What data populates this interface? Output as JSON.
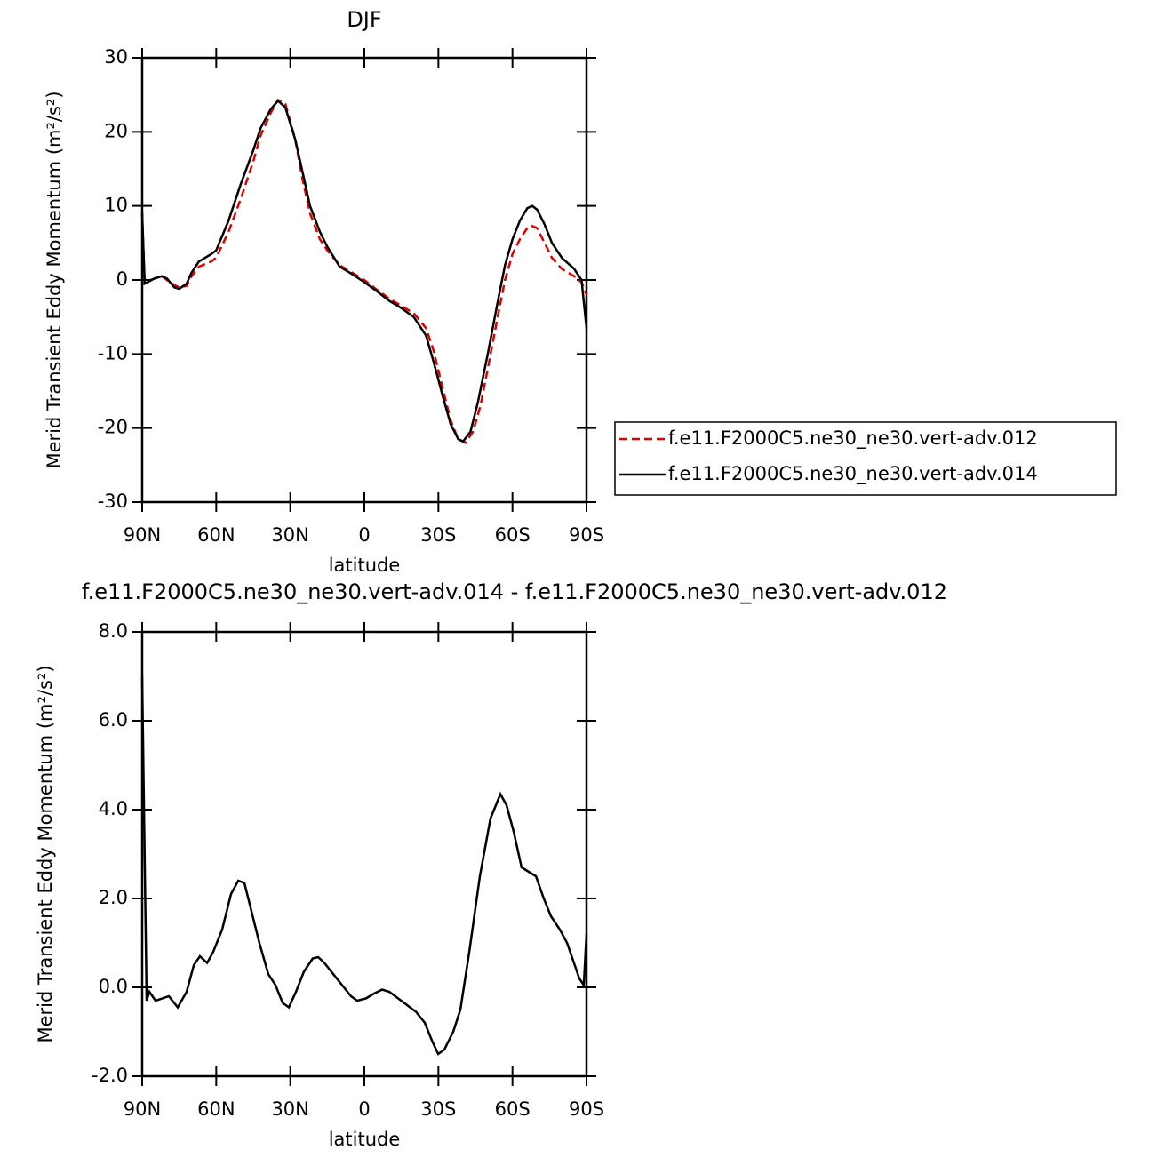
{
  "chart_data": [
    {
      "type": "line",
      "title": "DJF",
      "xlabel": "latitude",
      "ylabel": "Merid Transient Eddy Momentum (m²/s²)",
      "xlim": [
        90,
        -90
      ],
      "xticks": [
        {
          "value": 90,
          "label": "90N"
        },
        {
          "value": 60,
          "label": "60N"
        },
        {
          "value": 30,
          "label": "30N"
        },
        0,
        {
          "value": -30,
          "label": "30S"
        },
        {
          "value": -60,
          "label": "60S"
        },
        {
          "value": -90,
          "label": "90S"
        }
      ],
      "ylim": [
        -30,
        30
      ],
      "yticks": [
        -30,
        -20,
        -10,
        0,
        10,
        20,
        30
      ],
      "legend": "right",
      "series": [
        {
          "name": "f.e11.F2000C5.ne30_ne30.vert-adv.012",
          "color": "#e00000",
          "line_style": "dashed",
          "x": [
            90,
            89,
            85,
            82,
            80,
            77,
            75,
            72,
            70,
            67,
            62,
            60,
            55,
            50,
            45,
            42,
            38,
            35,
            32,
            28,
            25,
            22,
            18,
            15,
            10,
            5,
            0,
            -5,
            -10,
            -15,
            -20,
            -25,
            -28,
            -32,
            -35,
            -38,
            -41,
            -44,
            -47,
            -50,
            -54,
            -57,
            -60,
            -63,
            -66,
            -68,
            -70,
            -73,
            -76,
            -80,
            -85,
            -88,
            -90
          ],
          "values": [
            9,
            -0.3,
            0.2,
            0.5,
            0,
            -0.7,
            -1.0,
            -0.8,
            0.5,
            1.8,
            2.5,
            3,
            6.5,
            11,
            16,
            19.5,
            22.5,
            24.3,
            23.8,
            19,
            13.5,
            9,
            5.5,
            4,
            2,
            1,
            0,
            -1.3,
            -2.5,
            -3.5,
            -4.5,
            -6.5,
            -9.5,
            -15,
            -19,
            -21.5,
            -22,
            -20.5,
            -17,
            -12,
            -5,
            0,
            3.5,
            5.5,
            7,
            7.3,
            7,
            5,
            3,
            1.5,
            0.5,
            -0.3,
            -2
          ]
        },
        {
          "name": "f.e11.F2000C5.ne30_ne30.vert-adv.014",
          "color": "#000000",
          "line_style": "solid",
          "x": [
            90,
            89,
            85,
            82,
            80,
            77,
            75,
            72,
            70,
            67,
            62,
            60,
            55,
            50,
            45,
            42,
            38,
            35,
            32,
            28,
            25,
            22,
            18,
            15,
            10,
            5,
            0,
            -5,
            -10,
            -15,
            -20,
            -25,
            -28,
            -32,
            -35,
            -38,
            -40,
            -43,
            -46,
            -50,
            -54,
            -57,
            -60,
            -63,
            -66,
            -68,
            -70,
            -73,
            -76,
            -80,
            -85,
            -88,
            -90
          ],
          "values": [
            9,
            -0.5,
            0.2,
            0.5,
            0.2,
            -1.0,
            -1.2,
            -0.5,
            1,
            2.5,
            3.5,
            4,
            8,
            13,
            17.5,
            20.5,
            23,
            24.2,
            23.3,
            19,
            14.5,
            10,
            6.5,
            4.5,
            1.8,
            0.8,
            -0.3,
            -1.5,
            -2.8,
            -3.8,
            -5,
            -7.5,
            -11,
            -16,
            -19.5,
            -21.5,
            -21.8,
            -20.5,
            -16.5,
            -10,
            -3,
            2,
            5.5,
            8,
            9.7,
            10,
            9.5,
            7.5,
            5,
            3,
            1.5,
            0,
            -6.5
          ]
        }
      ]
    },
    {
      "type": "line",
      "title": "f.e11.F2000C5.ne30_ne30.vert-adv.014 - f.e11.F2000C5.ne30_ne30.vert-adv.012",
      "xlabel": "latitude",
      "ylabel": "Merid Transient Eddy Momentum (m²/s²)",
      "xlim": [
        90,
        -90
      ],
      "xticks": [
        {
          "value": 90,
          "label": "90N"
        },
        {
          "value": 60,
          "label": "60N"
        },
        {
          "value": 30,
          "label": "30N"
        },
        0,
        {
          "value": -30,
          "label": "30S"
        },
        {
          "value": -60,
          "label": "60S"
        },
        {
          "value": -90,
          "label": "90S"
        }
      ],
      "ylim": [
        -2,
        8
      ],
      "yticks": [
        {
          "value": -2,
          "label": "-2.0"
        },
        {
          "value": 0,
          "label": "0.0"
        },
        {
          "value": 2,
          "label": "2.0"
        },
        {
          "value": 4,
          "label": "4.0"
        },
        {
          "value": 6,
          "label": "6.0"
        },
        {
          "value": 8,
          "label": "8.0"
        }
      ],
      "series": [
        {
          "color": "#000000",
          "line_style": "solid",
          "x": [
            90,
            88.2,
            87.1,
            84.6,
            79.2,
            75.6,
            72,
            69.1,
            66.6,
            63.7,
            61.2,
            57.6,
            54,
            51.1,
            48.6,
            46.1,
            42.5,
            38.9,
            36,
            33.1,
            30.6,
            27.7,
            24.5,
            20.9,
            18.7,
            16.2,
            12.6,
            9,
            5.4,
            2.9,
            -0.7,
            -3.6,
            -7.2,
            -10.1,
            -13.7,
            -17.3,
            -20.9,
            -24.5,
            -27.4,
            -29.9,
            -32.4,
            -36,
            -38.9,
            -42.5,
            -46.8,
            -51.1,
            -55.1,
            -57.6,
            -60.5,
            -63.7,
            -66.6,
            -69.5,
            -72.7,
            -75.6,
            -79.2,
            -82.1,
            -84.6,
            -87.1,
            -88.9,
            -90
          ],
          "values": [
            7,
            -0.3,
            -0.1,
            -0.3,
            -0.2,
            -0.45,
            -0.1,
            0.5,
            0.7,
            0.55,
            0.8,
            1.3,
            2.1,
            2.4,
            2.35,
            1.8,
            1.0,
            0.3,
            0.05,
            -0.35,
            -0.45,
            -0.1,
            0.35,
            0.65,
            0.68,
            0.55,
            0.3,
            0.05,
            -0.2,
            -0.3,
            -0.25,
            -0.15,
            -0.05,
            -0.1,
            -0.25,
            -0.4,
            -0.55,
            -0.8,
            -1.2,
            -1.5,
            -1.4,
            -1.0,
            -0.5,
            0.8,
            2.5,
            3.8,
            4.35,
            4.1,
            3.5,
            2.7,
            2.6,
            2.5,
            2.0,
            1.6,
            1.3,
            1.0,
            0.6,
            0.2,
            0.05,
            1.2
          ]
        }
      ]
    }
  ]
}
